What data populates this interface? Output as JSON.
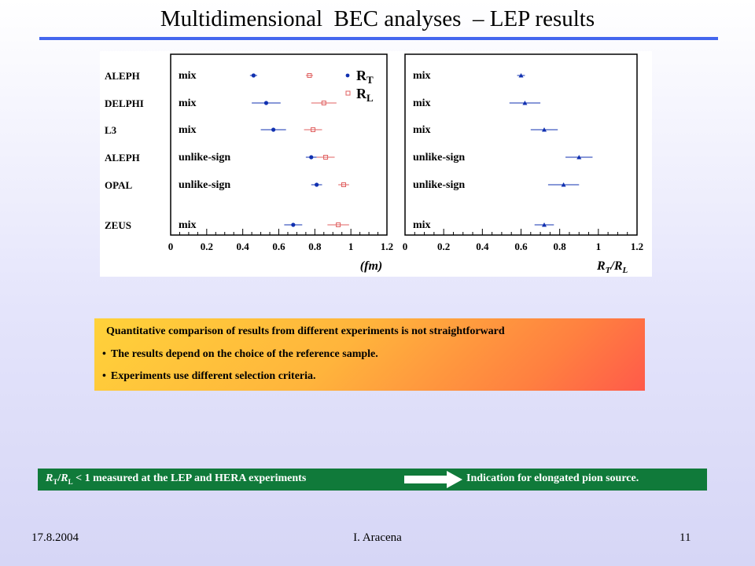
{
  "slide": {
    "title": "Multidimensional  BEC analyses  – LEP results",
    "footer_date": "17.8.2004",
    "footer_author": "I. Aracena",
    "footer_page": "11"
  },
  "chart_data": [
    {
      "type": "scatter",
      "rows": [
        {
          "experiment": "ALEPH",
          "method": "mix"
        },
        {
          "experiment": "DELPHI",
          "method": "mix"
        },
        {
          "experiment": "L3",
          "method": "mix"
        },
        {
          "experiment": "ALEPH",
          "method": "unlike-sign"
        },
        {
          "experiment": "OPAL",
          "method": "unlike-sign"
        },
        {
          "experiment": "ZEUS",
          "method": "mix"
        }
      ],
      "series": [
        {
          "name": "R_T",
          "marker": "dot",
          "color": "#1030b0",
          "values": [
            0.46,
            0.53,
            0.57,
            0.78,
            0.81,
            0.68
          ],
          "errors": [
            0.02,
            0.08,
            0.07,
            0.03,
            0.03,
            0.05
          ]
        },
        {
          "name": "R_L",
          "marker": "open-square",
          "color": "#e06060",
          "values": [
            0.77,
            0.85,
            0.79,
            0.86,
            0.96,
            0.93
          ],
          "errors": [
            0.02,
            0.07,
            0.05,
            0.05,
            0.03,
            0.06
          ]
        }
      ],
      "xlim": [
        0,
        1.2
      ],
      "xticks": [
        "0",
        "0.2",
        "0.4",
        "0.6",
        "0.8",
        "1",
        "1.2"
      ],
      "xlabel": "(fm)",
      "legend": {
        "position": "top-right",
        "entries": [
          "R_T",
          "R_L"
        ]
      }
    },
    {
      "type": "scatter",
      "rows": [
        {
          "method": "mix"
        },
        {
          "method": "mix"
        },
        {
          "method": "mix"
        },
        {
          "method": "unlike-sign"
        },
        {
          "method": "unlike-sign"
        },
        {
          "method": "mix"
        }
      ],
      "series": [
        {
          "name": "R_T/R_L",
          "marker": "triangle",
          "color": "#1030b0",
          "values": [
            0.6,
            0.62,
            0.72,
            0.9,
            0.82,
            0.72
          ],
          "errors": [
            0.02,
            0.08,
            0.07,
            0.07,
            0.08,
            0.05
          ]
        }
      ],
      "xlim": [
        0,
        1.2
      ],
      "xticks": [
        "0",
        "0.2",
        "0.4",
        "0.6",
        "0.8",
        "1",
        "1.2"
      ],
      "xlabel": "R_T/R_L"
    }
  ],
  "note_box": {
    "heading": "Quantitative comparison of results from different experiments is not straightforward",
    "bullet": "•",
    "items": [
      "The results depend on the choice of the reference sample.",
      "Experiments use different selection criteria."
    ]
  },
  "conclusion": {
    "left_rest": " < 1 measured at the LEP and HERA experiments",
    "right": "Indication for elongated pion source."
  },
  "colors": {
    "title_rule": "#4466ee",
    "green_bar": "#107a3a",
    "marker_blue": "#1030b0",
    "marker_red": "#e06060"
  }
}
